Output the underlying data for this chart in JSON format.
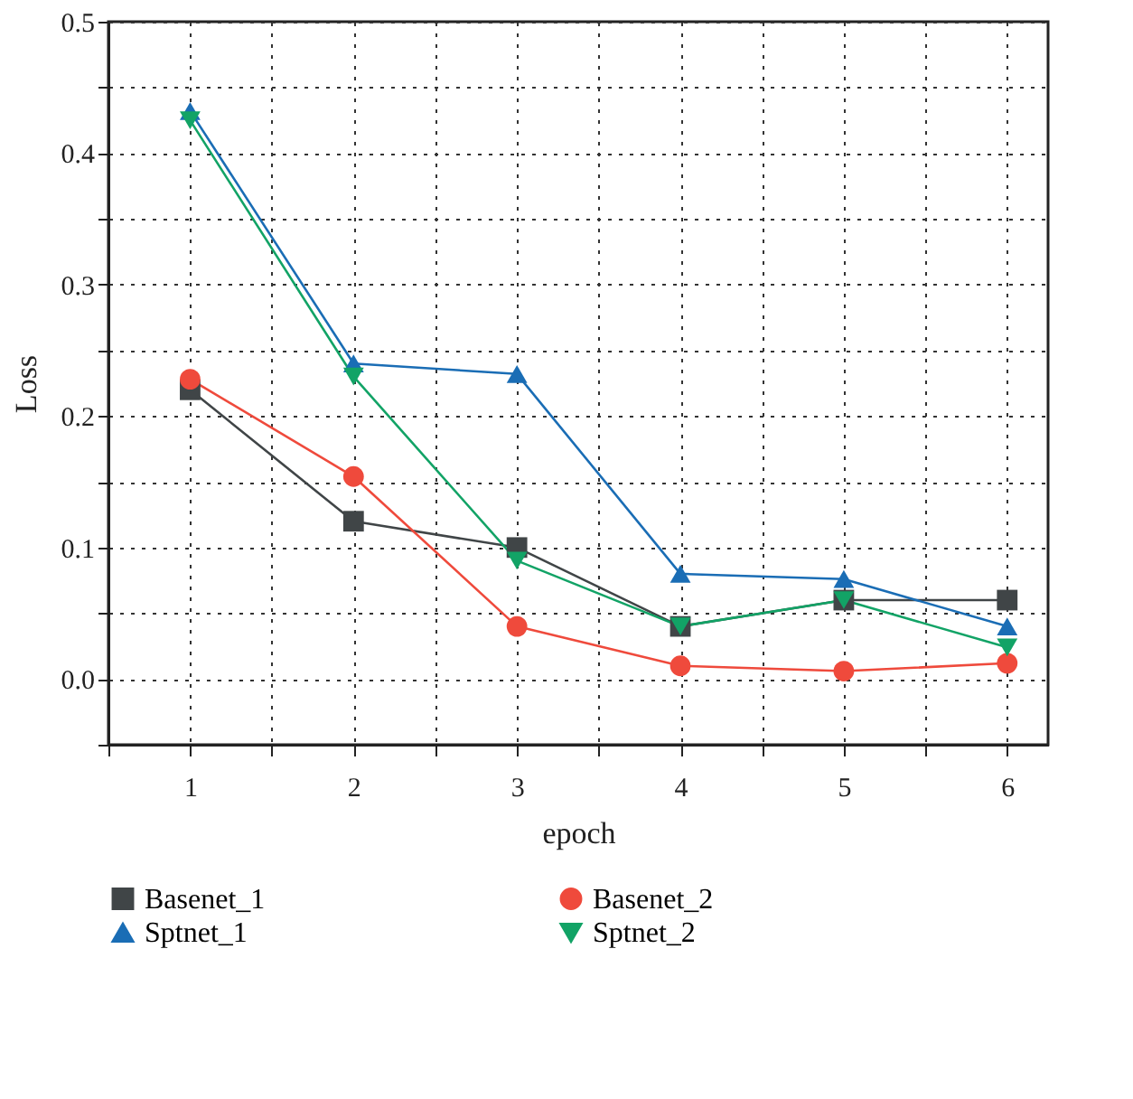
{
  "chart_data": {
    "type": "line",
    "xlabel": "epoch",
    "ylabel": "Loss",
    "x": [
      1,
      2,
      3,
      4,
      5,
      6
    ],
    "xlim": [
      0.5,
      6.25
    ],
    "xticks": [
      {
        "value": 0.5,
        "label": null
      },
      1,
      {
        "value": 1.5,
        "label": null
      },
      2,
      {
        "value": 2.5,
        "label": null
      },
      3,
      {
        "value": 3.5,
        "label": null
      },
      4,
      {
        "value": 4.5,
        "label": null
      },
      5,
      {
        "value": 5.5,
        "label": null
      },
      6
    ],
    "ylim": [
      -0.05,
      0.5
    ],
    "yticks": [
      {
        "value": -0.05,
        "label": null
      },
      {
        "value": 0,
        "label": "0.0"
      },
      {
        "value": 0.05,
        "label": null
      },
      0.1,
      {
        "value": 0.15,
        "label": null
      },
      0.2,
      {
        "value": 0.25,
        "label": null
      },
      0.3,
      {
        "value": 0.35,
        "label": null
      },
      0.4,
      {
        "value": 0.45,
        "label": null
      },
      0.5
    ],
    "grid": true,
    "legend": "bottom",
    "line_style": "solid",
    "series": [
      {
        "name": "Basenet_1",
        "color": "#404547",
        "marker": "square",
        "values": [
          0.22,
          0.12,
          0.1,
          0.04,
          0.06,
          0.06
        ]
      },
      {
        "name": "Basenet_2",
        "color": "#ef4a3c",
        "marker": "circle",
        "values": [
          0.228,
          0.154,
          0.04,
          0.01,
          0.006,
          0.012
        ]
      },
      {
        "name": "Sptnet_1",
        "color": "#1a6db5",
        "marker": "triangle",
        "values": [
          0.432,
          0.24,
          0.232,
          0.08,
          0.076,
          0.04
        ]
      },
      {
        "name": "Sptnet_2",
        "color": "#12a366",
        "marker": "triangle-down",
        "values": [
          0.425,
          0.23,
          0.09,
          0.04,
          0.06,
          0.024
        ]
      }
    ]
  }
}
